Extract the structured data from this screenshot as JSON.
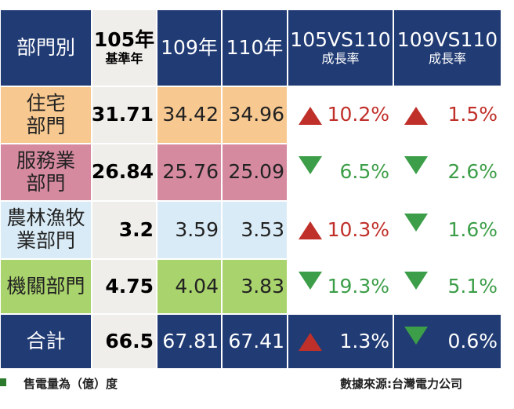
{
  "table": {
    "header": [
      [
        "部門別"
      ],
      [
        "105年",
        "基準年"
      ],
      [
        "109年"
      ],
      [
        "110年"
      ],
      [
        "105VS110",
        "成長率"
      ],
      [
        "109VS110",
        "成長率"
      ]
    ],
    "rows": [
      {
        "label": [
          "住宅",
          "部門"
        ],
        "color": "#f7c890",
        "values": [
          "31.71",
          "34.42",
          "34.96"
        ],
        "growth": [
          {
            "dir": "up",
            "text": "10.2%"
          },
          {
            "dir": "up",
            "text": "1.5%"
          }
        ]
      },
      {
        "label": [
          "服務業",
          "部門"
        ],
        "color": "#d68aa0",
        "values": [
          "26.84",
          "25.76",
          "25.09"
        ],
        "growth": [
          {
            "dir": "down",
            "text": "6.5%"
          },
          {
            "dir": "down",
            "text": "2.6%"
          }
        ]
      },
      {
        "label": [
          "農林漁牧",
          "業部門"
        ],
        "color": "#d9ebf6",
        "values": [
          "3.2",
          "3.59",
          "3.53"
        ],
        "growth": [
          {
            "dir": "up",
            "text": "10.3%"
          },
          {
            "dir": "down",
            "text": "1.6%"
          }
        ]
      },
      {
        "label": [
          "機關部門"
        ],
        "color": "#a9d36c",
        "values": [
          "4.75",
          "4.04",
          "3.83"
        ],
        "growth": [
          {
            "dir": "down",
            "text": "19.3%"
          },
          {
            "dir": "down",
            "text": "5.1%"
          }
        ]
      },
      {
        "label": [
          "合計"
        ],
        "color": "#213b74",
        "values": [
          "66.5",
          "67.81",
          "67.41"
        ],
        "growth": [
          {
            "dir": "up",
            "text": "1.3%"
          },
          {
            "dir": "down",
            "text": "0.6%"
          }
        ]
      }
    ]
  },
  "footer": {
    "unit": "售電量為（億）度",
    "source": "數據來源:台灣電力公司"
  }
}
